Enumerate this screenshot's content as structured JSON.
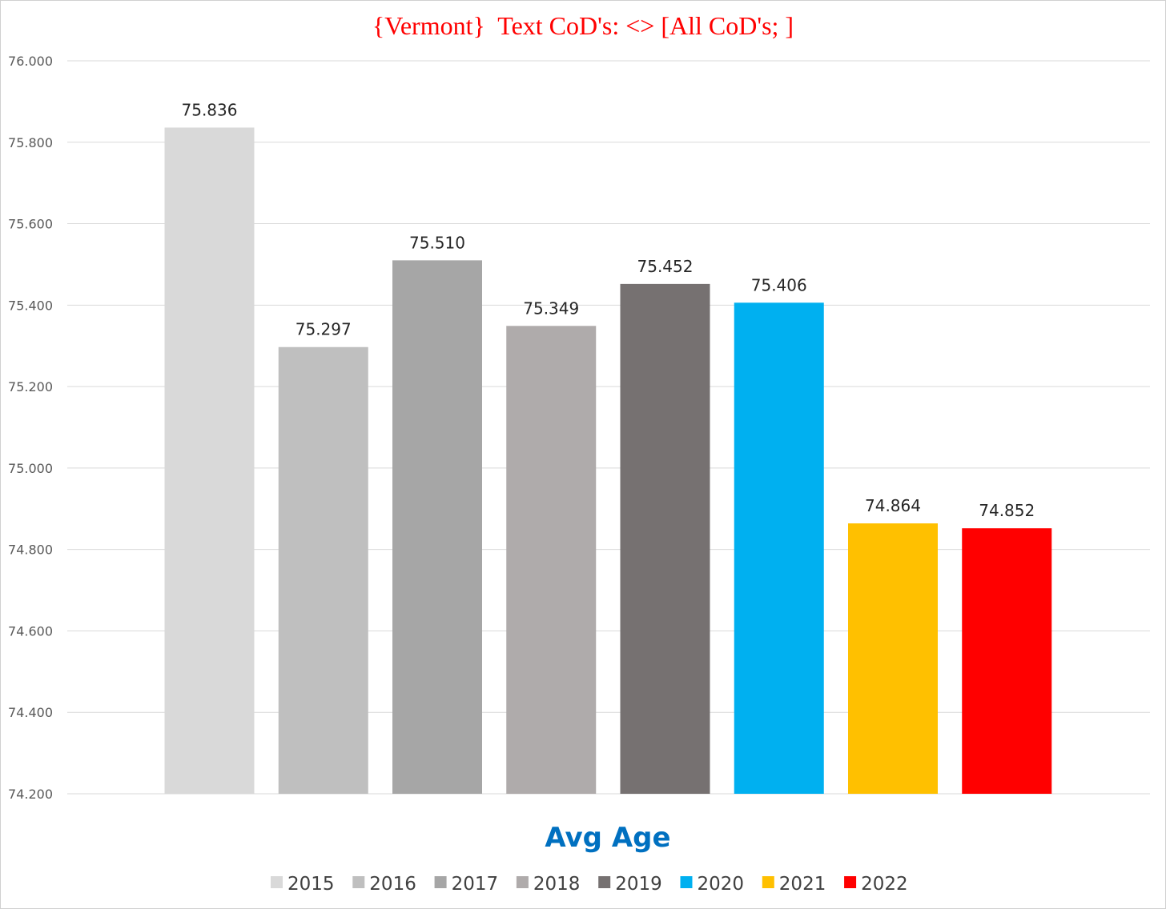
{
  "chart_data": {
    "type": "bar",
    "title": "{Vermont}  Text CoD's: <> [All CoD's; ]",
    "xlabel": "Avg Age",
    "ylabel": "",
    "ylim": [
      74.2,
      76.0
    ],
    "yticks": [
      "74.200",
      "74.400",
      "74.600",
      "74.800",
      "75.000",
      "75.200",
      "75.400",
      "75.600",
      "75.800",
      "76.000"
    ],
    "grid": true,
    "legend_position": "bottom",
    "series": [
      {
        "name": "2015",
        "value": 75.836,
        "label": "75.836",
        "color": "#d9d9d9"
      },
      {
        "name": "2016",
        "value": 75.297,
        "label": "75.297",
        "color": "#bfbfbf"
      },
      {
        "name": "2017",
        "value": 75.51,
        "label": "75.510",
        "color": "#a6a6a6"
      },
      {
        "name": "2018",
        "value": 75.349,
        "label": "75.349",
        "color": "#afabab"
      },
      {
        "name": "2019",
        "value": 75.452,
        "label": "75.452",
        "color": "#767171"
      },
      {
        "name": "2020",
        "value": 75.406,
        "label": "75.406",
        "color": "#00b0f0"
      },
      {
        "name": "2021",
        "value": 74.864,
        "label": "74.864",
        "color": "#ffc000"
      },
      {
        "name": "2022",
        "value": 74.852,
        "label": "74.852",
        "color": "#ff0000"
      }
    ]
  }
}
